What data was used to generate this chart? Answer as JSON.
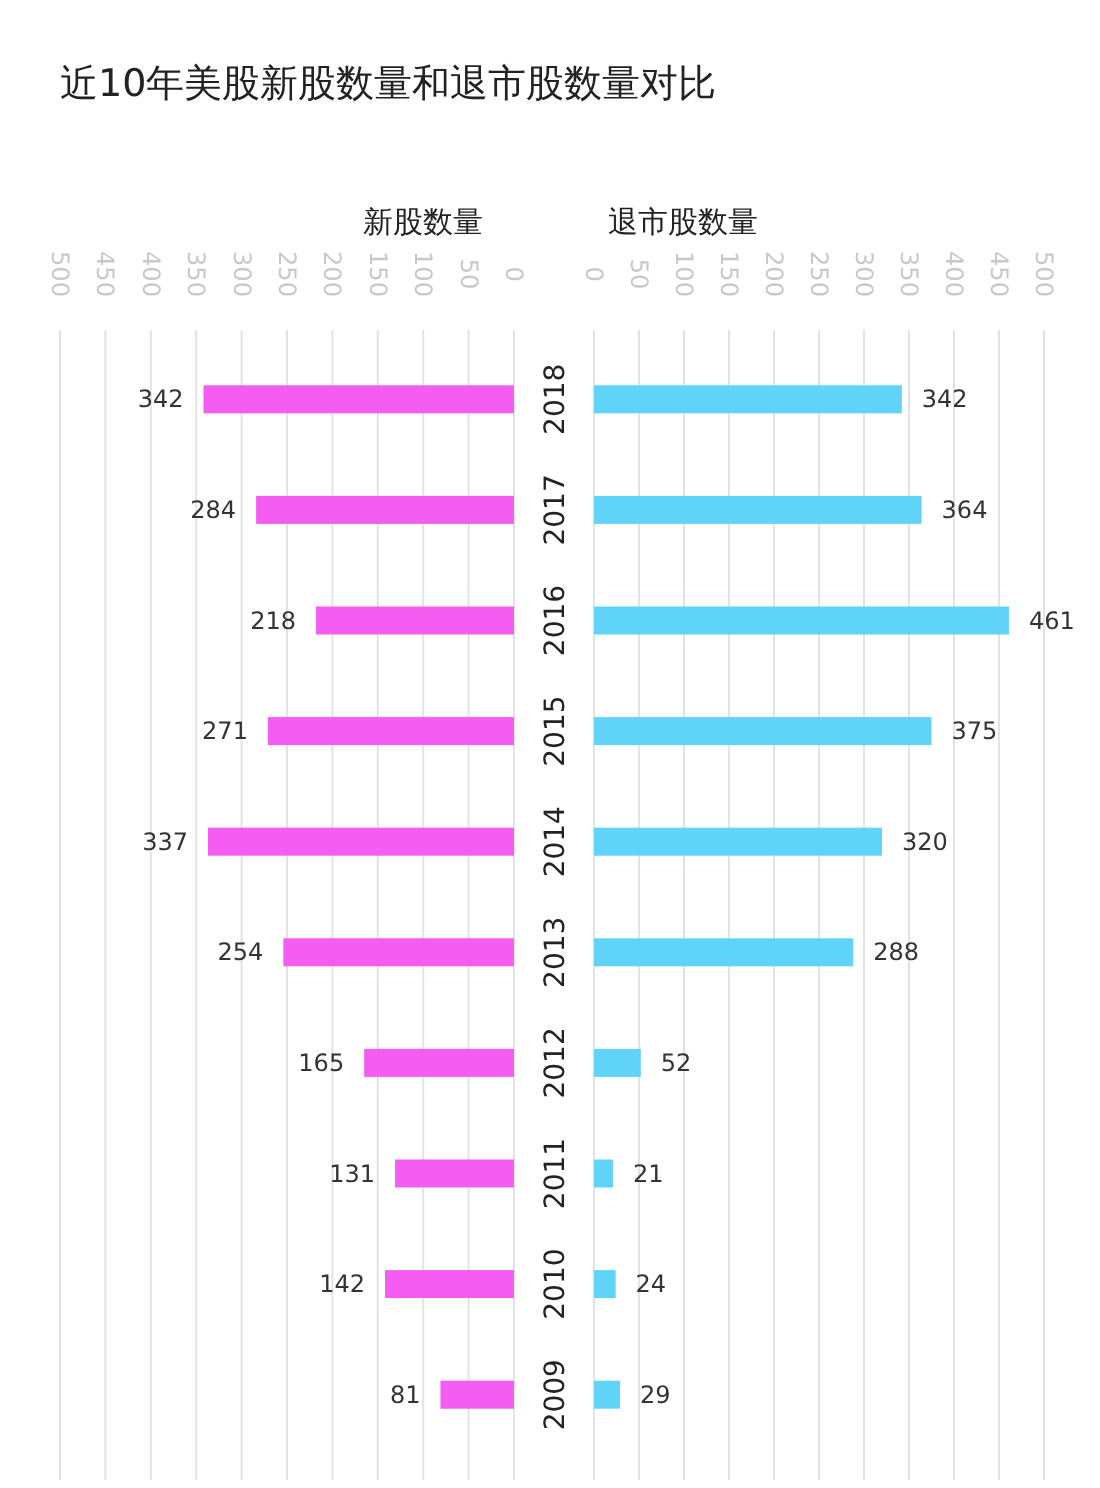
{
  "chart_data": [
    {
      "type": "bar",
      "orientation": "horizontal",
      "title": "近10年美股新股数量和退市股数量对比",
      "xlabel": "新股数量",
      "categories": [
        "2018",
        "2017",
        "2016",
        "2015",
        "2014",
        "2013",
        "2012",
        "2011",
        "2010",
        "2009"
      ],
      "series": [
        {
          "color": "#f45cf2",
          "values": [
            342,
            284,
            218,
            271,
            337,
            254,
            165,
            131,
            142,
            81
          ]
        }
      ],
      "xlim": [
        500,
        0
      ],
      "xticks": [
        500,
        450,
        400,
        350,
        300,
        250,
        200,
        150,
        100,
        50,
        0
      ],
      "grid": "x",
      "data_labels": true
    },
    {
      "type": "bar",
      "orientation": "horizontal",
      "xlabel": "退市股数量",
      "categories": [
        "2018",
        "2017",
        "2016",
        "2015",
        "2014",
        "2013",
        "2012",
        "2011",
        "2010",
        "2009"
      ],
      "series": [
        {
          "color": "#5fd4f8",
          "values": [
            342,
            364,
            461,
            375,
            320,
            288,
            52,
            21,
            24,
            29
          ]
        }
      ],
      "xlim": [
        0,
        500
      ],
      "xticks": [
        0,
        50,
        100,
        150,
        200,
        250,
        300,
        350,
        400,
        450,
        500
      ],
      "grid": "x",
      "data_labels": true,
      "tick_labels": "x"
    }
  ]
}
